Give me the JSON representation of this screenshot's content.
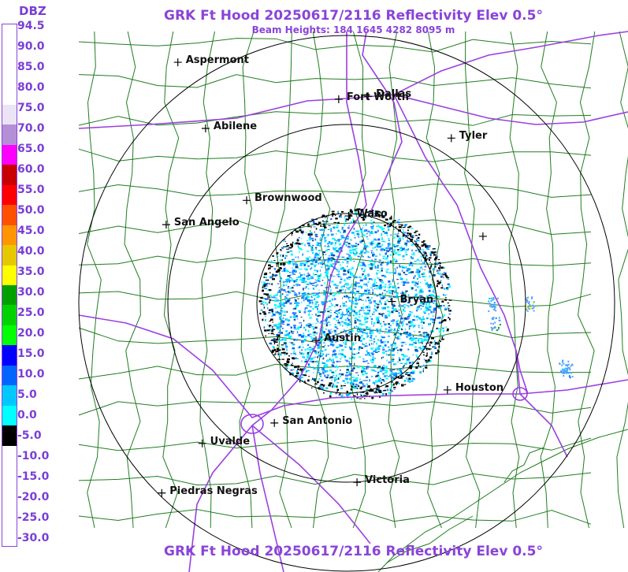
{
  "title": "GRK Ft Hood 20250617/2116 Reflectivity Elev 0.5°",
  "subtitle": "Beam Heights: 184 1645 4282 8095 m",
  "title_bottom": "GRK Ft Hood 20250617/2116 Reflectivity Elev 0.5°",
  "legend": {
    "unit": "DBZ",
    "labels": [
      "94.5",
      "90.0",
      "85.0",
      "80.0",
      "75.0",
      "70.0",
      "65.0",
      "60.0",
      "55.0",
      "50.0",
      "45.0",
      "40.0",
      "35.0",
      "30.0",
      "25.0",
      "20.0",
      "15.0",
      "10.0",
      "5.0",
      "0.0",
      "-5.0",
      "-10.0",
      "-15.0",
      "-20.0",
      "-25.0",
      "-30.0"
    ],
    "colors": [
      "#ffffff",
      "#ffffff",
      "#ffffff",
      "#ffffff",
      "#ece4f4",
      "#b48fd8",
      "#ff00ff",
      "#c80000",
      "#ff0000",
      "#ff5000",
      "#ff9600",
      "#e6c800",
      "#ffff00",
      "#00a000",
      "#00d200",
      "#00ff00",
      "#0000ff",
      "#0064ff",
      "#00c8ff",
      "#00ffff",
      "#000000",
      "#ffffff",
      "#ffffff",
      "#ffffff",
      "#ffffff",
      "#ffffff"
    ]
  },
  "cities": [
    {
      "name": "Aspermont",
      "lat": 33.13,
      "lon": -100.23
    },
    {
      "name": "Fort Worth",
      "lat": 32.75,
      "lon": -97.33
    },
    {
      "name": "Dallas",
      "lat": 32.78,
      "lon": -96.8
    },
    {
      "name": "Abilene",
      "lat": 32.45,
      "lon": -99.73
    },
    {
      "name": "Tyler",
      "lat": 32.35,
      "lon": -95.3
    },
    {
      "name": "Brownwood",
      "lat": 31.71,
      "lon": -98.99
    },
    {
      "name": "Waco",
      "lat": 31.55,
      "lon": -97.15
    },
    {
      "name": "San Angelo",
      "lat": 31.46,
      "lon": -100.44
    },
    {
      "name": "",
      "lat": 31.34,
      "lon": -94.73
    },
    {
      "name": "Bryan",
      "lat": 30.67,
      "lon": -96.37
    },
    {
      "name": "Austin",
      "lat": 30.27,
      "lon": -97.74
    },
    {
      "name": "Houston",
      "lat": 29.76,
      "lon": -95.37
    },
    {
      "name": "San Antonio",
      "lat": 29.42,
      "lon": -98.49
    },
    {
      "name": "Uvalde",
      "lat": 29.21,
      "lon": -99.79
    },
    {
      "name": "Victoria",
      "lat": 28.81,
      "lon": -97.0
    },
    {
      "name": "Piedras Negras",
      "lat": 28.7,
      "lon": -100.52
    }
  ],
  "colors": {
    "title": "#8a44d8",
    "highway": "#9b3fe0",
    "county": "#1a7a1a",
    "range_ring": "#000000"
  }
}
